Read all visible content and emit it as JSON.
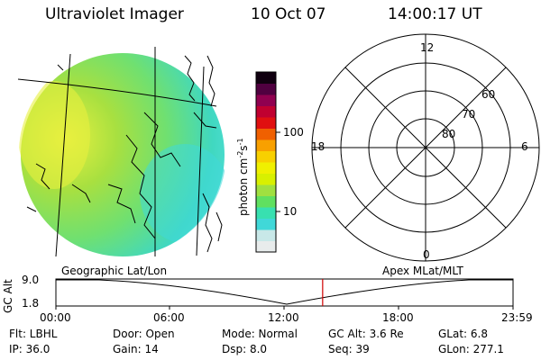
{
  "header": {
    "title": "Ultraviolet Imager",
    "date": "10 Oct 07",
    "time": "14:00:17 UT"
  },
  "colorbar": {
    "unit_label": "photon cm",
    "unit_exp1": "-2",
    "unit_mid": "s",
    "unit_exp2": "-1",
    "tick_100": "100",
    "tick_10": "10",
    "colors": [
      "#e8ecec",
      "#c8e8e8",
      "#40d8d8",
      "#38e0b0",
      "#60e060",
      "#a0e040",
      "#d8f000",
      "#f0f000",
      "#f8d000",
      "#f8a000",
      "#f06000",
      "#e01010",
      "#c00030",
      "#900050",
      "#500040",
      "#100010"
    ]
  },
  "polar": {
    "mlt_12": "12",
    "mlt_18": "18",
    "mlt_6": "6",
    "mlt_0": "0",
    "lat_60": "60",
    "lat_70": "70",
    "lat_80": "80"
  },
  "orbit": {
    "left_title": "Geographic Lat/Lon",
    "right_title": "Apex MLat/MLT",
    "ylabel": "GC Alt",
    "y_top": "9.0",
    "y_bottom": "1.8",
    "ticks": [
      "00:00",
      "06:00",
      "12:00",
      "18:00",
      "23:59"
    ],
    "current_time_fraction": 0.5835,
    "marker_color": "#d00000"
  },
  "info": {
    "filter": "Flt: LBHL",
    "door": "Door: Open",
    "mode": "Mode: Normal",
    "gc_alt": "GC Alt: 3.6 Re",
    "glat": "GLat:   6.8",
    "ip": "IP: 36.0",
    "gain": "Gain: 14",
    "dsp": "Dsp:     8.0",
    "seq": "Seq: 39",
    "glon": "GLon: 277.1"
  }
}
